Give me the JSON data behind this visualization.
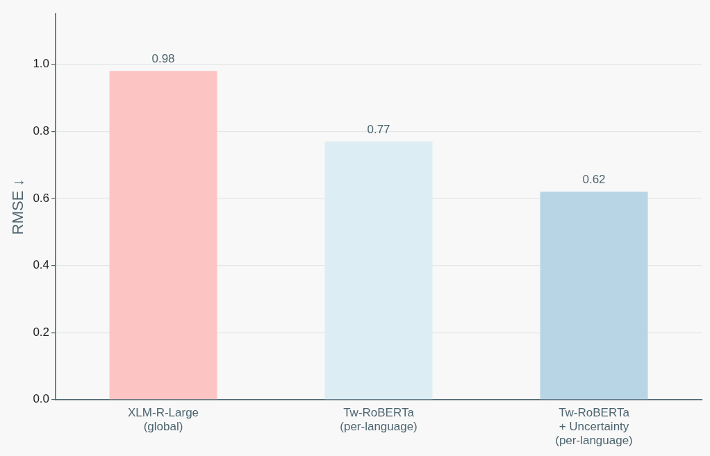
{
  "chart_data": {
    "type": "bar",
    "ylabel": "RMSE ↓",
    "categories": [
      "XLM-R-Large\n(global)",
      "Tw-RoBERTa\n(per-language)",
      "Tw-RoBERTa\n+ Uncertainty\n(per-language)"
    ],
    "values": [
      0.98,
      0.77,
      0.62
    ],
    "colors": [
      "#fcc5c3",
      "#dcedf4",
      "#b8d5e6"
    ],
    "ylim": [
      0,
      1.15
    ],
    "yticks": [
      {
        "value": 0,
        "label": "0.0"
      },
      0.2,
      0.4,
      0.6,
      0.8,
      {
        "value": 1,
        "label": "1.0"
      }
    ],
    "grid": "y",
    "data_labels": true
  }
}
